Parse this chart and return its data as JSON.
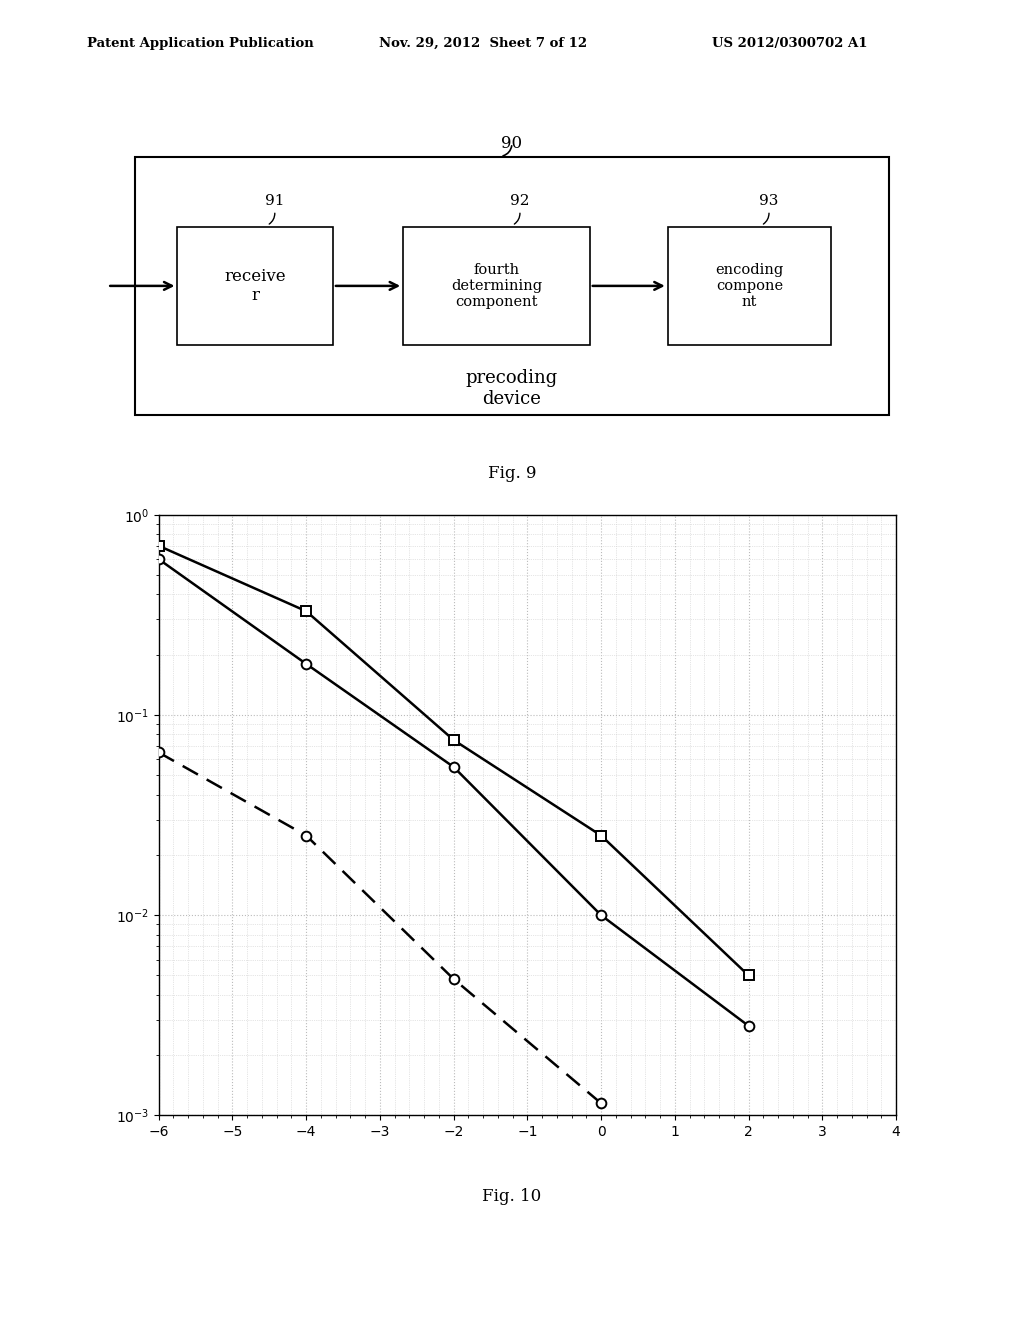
{
  "header_left": "Patent Application Publication",
  "header_mid": "Nov. 29, 2012  Sheet 7 of 12",
  "header_right": "US 2012/0300702 A1",
  "fig9_label": "Fig. 9",
  "fig10_label": "Fig. 10",
  "outer_box_label": "90",
  "box91_label": "91",
  "box91_text": "receive\nr",
  "box92_label": "92",
  "box92_text": "fourth\ndetermining\ncomponent",
  "box93_label": "93",
  "box93_text": "encoding\ncompone\nnt",
  "outer_box_bottom_text": "precoding\ndevice",
  "plot_xlim": [
    -6,
    4
  ],
  "plot_ylim_log": [
    -3,
    0
  ],
  "plot_xticks": [
    -6,
    -5,
    -4,
    -3,
    -2,
    -1,
    0,
    1,
    2,
    3,
    4
  ],
  "plot_yticks_log": [
    0,
    -1,
    -2,
    -3
  ],
  "line1_x": [
    -6,
    -4,
    -2,
    0,
    2
  ],
  "line1_y": [
    0.7,
    0.33,
    0.075,
    0.025,
    0.005
  ],
  "line1_style": "solid",
  "line1_marker": "s",
  "line1_color": "#000000",
  "line1_linewidth": 1.8,
  "line2_x": [
    -6,
    -4,
    -2,
    0,
    2
  ],
  "line2_y": [
    0.6,
    0.18,
    0.055,
    0.01,
    0.0028
  ],
  "line2_style": "solid",
  "line2_marker": "o",
  "line2_color": "#000000",
  "line2_linewidth": 1.8,
  "line3_x": [
    -6,
    -4,
    -2,
    0
  ],
  "line3_y": [
    0.065,
    0.025,
    0.0048,
    0.00115
  ],
  "line3_style": "dashed",
  "line3_marker": "o",
  "line3_color": "#000000",
  "line3_linewidth": 1.8,
  "bg_color": "#ffffff",
  "grid_color": "#bbbbbb"
}
